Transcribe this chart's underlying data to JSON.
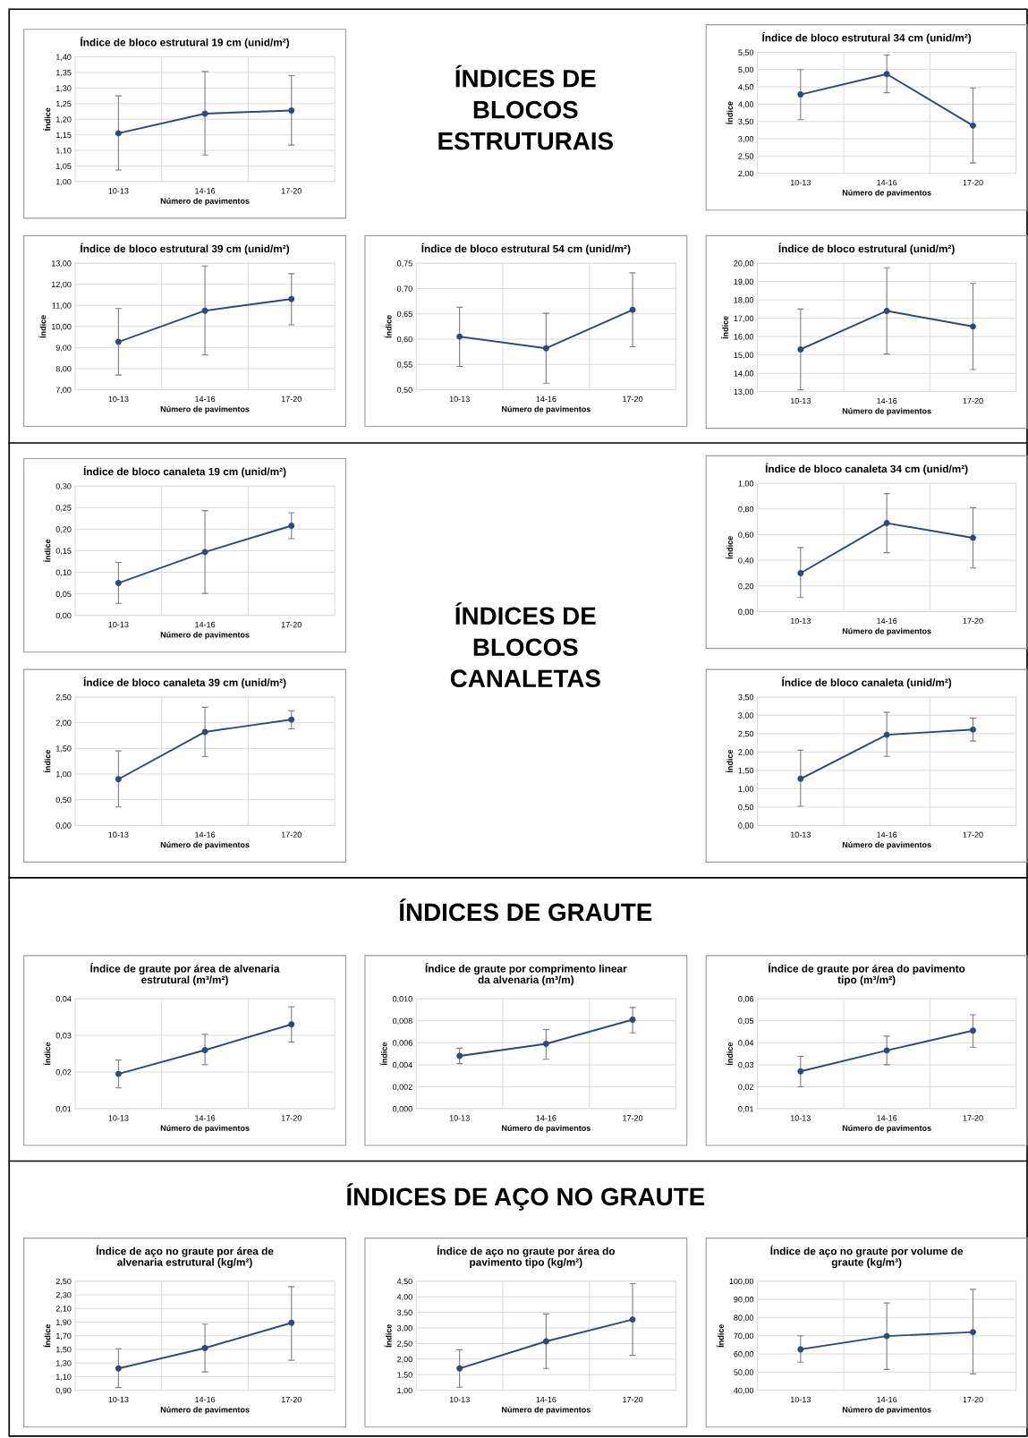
{
  "chart_data": [
    {
      "type": "line",
      "title": "Índice de bloco estrutural 19 cm (unid/m²)",
      "xlabel": "Número de pavimentos",
      "ylabel": "Índice",
      "categories": [
        "10-13",
        "14-16",
        "17-20"
      ],
      "marker": "circle",
      "grid": true,
      "series": [
        {
          "color": "#2e4a7d",
          "values": [
            1.155,
            1.218,
            1.228
          ],
          "errors": [
            [
              1.037,
              1.275
            ],
            [
              1.085,
              1.353
            ],
            [
              1.117,
              1.34
            ]
          ]
        }
      ],
      "ylim": [
        1.0,
        1.4
      ],
      "yticks": [
        {
          "value": 1.0,
          "label": "1,00"
        },
        {
          "value": 1.05,
          "label": "1,05"
        },
        {
          "value": 1.1,
          "label": "1,10"
        },
        {
          "value": 1.15,
          "label": "1,15"
        },
        {
          "value": 1.2,
          "label": "1,20"
        },
        {
          "value": 1.25,
          "label": "1,25"
        },
        {
          "value": 1.3,
          "label": "1,30"
        },
        {
          "value": 1.35,
          "label": "1,35"
        },
        {
          "value": 1.4,
          "label": "1,40"
        }
      ]
    },
    {
      "type": "other",
      "title": "ÍNDICES DE\nBLOCOS\nESTRUTURAIS"
    },
    {
      "type": "line",
      "title": "Índice de bloco estrutural 34 cm (unid/m²)",
      "xlabel": "Número de pavimentos",
      "ylabel": "Índice",
      "categories": [
        "10-13",
        "14-16",
        "17-20"
      ],
      "marker": "circle",
      "grid": true,
      "series": [
        {
          "color": "#2e4a7d",
          "values": [
            4.28,
            4.87,
            3.38
          ],
          "errors": [
            [
              3.55,
              5.0
            ],
            [
              4.33,
              5.42
            ],
            [
              2.3,
              4.47
            ]
          ]
        }
      ],
      "ylim": [
        2.0,
        5.5
      ],
      "yticks": [
        {
          "value": 2.0,
          "label": "2,00"
        },
        {
          "value": 2.5,
          "label": "2,50"
        },
        {
          "value": 3.0,
          "label": "3,00"
        },
        {
          "value": 3.5,
          "label": "3,50"
        },
        {
          "value": 4.0,
          "label": "4,00"
        },
        {
          "value": 4.5,
          "label": "4,50"
        },
        {
          "value": 5.0,
          "label": "5,00"
        },
        {
          "value": 5.5,
          "label": "5,50"
        }
      ]
    },
    {
      "type": "line",
      "title": "Índice de bloco estrutural 39 cm (unid/m²)",
      "xlabel": "Número de pavimentos",
      "ylabel": "Índice",
      "categories": [
        "10-13",
        "14-16",
        "17-20"
      ],
      "marker": "circle",
      "grid": true,
      "series": [
        {
          "color": "#2e4a7d",
          "values": [
            9.27,
            10.75,
            11.3
          ],
          "errors": [
            [
              7.7,
              10.85
            ],
            [
              8.65,
              12.87
            ],
            [
              10.08,
              12.5
            ]
          ]
        }
      ],
      "ylim": [
        7,
        13
      ],
      "yticks": [
        {
          "value": 7,
          "label": "7,00"
        },
        {
          "value": 8,
          "label": "8,00"
        },
        {
          "value": 9,
          "label": "9,00"
        },
        {
          "value": 10,
          "label": "10,00"
        },
        {
          "value": 11,
          "label": "11,00"
        },
        {
          "value": 12,
          "label": "12,00"
        },
        {
          "value": 13,
          "label": "13,00"
        }
      ]
    },
    {
      "type": "line",
      "title": "Índice de bloco estrutural 54 cm (unid/m²)",
      "xlabel": "Número de pavimentos",
      "ylabel": "Índice",
      "categories": [
        "10-13",
        "14-16",
        "17-20"
      ],
      "marker": "circle",
      "grid": true,
      "series": [
        {
          "color": "#2e4a7d",
          "values": [
            0.605,
            0.582,
            0.658
          ],
          "errors": [
            [
              0.546,
              0.663
            ],
            [
              0.513,
              0.651
            ],
            [
              0.585,
              0.731
            ]
          ]
        }
      ],
      "ylim": [
        0.5,
        0.75
      ],
      "yticks": [
        {
          "value": 0.5,
          "label": "0,50"
        },
        {
          "value": 0.55,
          "label": "0,55"
        },
        {
          "value": 0.6,
          "label": "0,60"
        },
        {
          "value": 0.65,
          "label": "0,65"
        },
        {
          "value": 0.7,
          "label": "0,70"
        },
        {
          "value": 0.75,
          "label": "0,75"
        }
      ]
    },
    {
      "type": "line",
      "title": "Índice de bloco estrutural (unid/m²)",
      "xlabel": "Número de pavimentos",
      "ylabel": "Índice",
      "categories": [
        "10-13",
        "14-16",
        "17-20"
      ],
      "marker": "circle",
      "grid": true,
      "series": [
        {
          "color": "#2e4a7d",
          "values": [
            15.3,
            17.4,
            16.55
          ],
          "errors": [
            [
              13.1,
              17.5
            ],
            [
              15.05,
              19.75
            ],
            [
              14.2,
              18.9
            ]
          ]
        }
      ],
      "ylim": [
        13,
        20
      ],
      "yticks": [
        {
          "value": 13,
          "label": "13,00"
        },
        {
          "value": 14,
          "label": "14,00"
        },
        {
          "value": 15,
          "label": "15,00"
        },
        {
          "value": 16,
          "label": "16,00"
        },
        {
          "value": 17,
          "label": "17,00"
        },
        {
          "value": 18,
          "label": "18,00"
        },
        {
          "value": 19,
          "label": "19,00"
        },
        {
          "value": 20,
          "label": "20,00"
        }
      ]
    },
    {
      "type": "line",
      "title": "Índice de bloco canaleta 19 cm (unid/m²)",
      "xlabel": "Número de pavimentos",
      "ylabel": "Índice",
      "categories": [
        "10-13",
        "14-16",
        "17-20"
      ],
      "marker": "circle",
      "grid": true,
      "series": [
        {
          "color": "#2e4a7d",
          "values": [
            0.075,
            0.147,
            0.208
          ],
          "errors": [
            [
              0.028,
              0.123
            ],
            [
              0.051,
              0.243
            ],
            [
              0.178,
              0.238
            ]
          ]
        }
      ],
      "ylim": [
        0,
        0.3
      ],
      "yticks": [
        {
          "value": 0,
          "label": "0,00"
        },
        {
          "value": 0.05,
          "label": "0,05"
        },
        {
          "value": 0.1,
          "label": "0,10"
        },
        {
          "value": 0.15,
          "label": "0,15"
        },
        {
          "value": 0.2,
          "label": "0,20"
        },
        {
          "value": 0.25,
          "label": "0,25"
        },
        {
          "value": 0.3,
          "label": "0,30"
        }
      ]
    },
    {
      "type": "other",
      "title": "ÍNDICES DE\nBLOCOS\nCANALETAS"
    },
    {
      "type": "line",
      "title": "Índice de bloco canaleta 34 cm (unid/m²)",
      "xlabel": "Número de pavimentos",
      "ylabel": "Índice",
      "categories": [
        "10-13",
        "14-16",
        "17-20"
      ],
      "marker": "circle",
      "grid": true,
      "series": [
        {
          "color": "#2e4a7d",
          "values": [
            0.3,
            0.69,
            0.575
          ],
          "errors": [
            [
              0.11,
              0.5
            ],
            [
              0.46,
              0.92
            ],
            [
              0.34,
              0.81
            ]
          ]
        }
      ],
      "ylim": [
        0,
        1
      ],
      "yticks": [
        {
          "value": 0,
          "label": "0,00"
        },
        {
          "value": 0.2,
          "label": "0,20"
        },
        {
          "value": 0.4,
          "label": "0,40"
        },
        {
          "value": 0.6,
          "label": "0,60"
        },
        {
          "value": 0.8,
          "label": "0,80"
        },
        {
          "value": 1,
          "label": "1,00"
        }
      ]
    },
    {
      "type": "line",
      "title": "Índice de bloco canaleta 39 cm (unid/m²)",
      "xlabel": "Número de pavimentos",
      "ylabel": "Índice",
      "categories": [
        "10-13",
        "14-16",
        "17-20"
      ],
      "marker": "circle",
      "grid": true,
      "series": [
        {
          "color": "#2e4a7d",
          "values": [
            0.9,
            1.82,
            2.06
          ],
          "errors": [
            [
              0.36,
              1.45
            ],
            [
              1.34,
              2.3
            ],
            [
              1.88,
              2.23
            ]
          ]
        }
      ],
      "ylim": [
        0,
        2.5
      ],
      "yticks": [
        {
          "value": 0,
          "label": "0,00"
        },
        {
          "value": 0.5,
          "label": "0,50"
        },
        {
          "value": 1,
          "label": "1,00"
        },
        {
          "value": 1.5,
          "label": "1,50"
        },
        {
          "value": 2,
          "label": "2,00"
        },
        {
          "value": 2.5,
          "label": "2,50"
        }
      ]
    },
    {
      "type": "line",
      "title": "Índice de bloco canaleta (unid/m²)",
      "xlabel": "Número de pavimentos",
      "ylabel": "Índice",
      "categories": [
        "10-13",
        "14-16",
        "17-20"
      ],
      "marker": "circle",
      "grid": true,
      "series": [
        {
          "color": "#2e4a7d",
          "values": [
            1.27,
            2.47,
            2.61
          ],
          "errors": [
            [
              0.52,
              2.05
            ],
            [
              1.88,
              3.08
            ],
            [
              2.3,
              2.92
            ]
          ]
        }
      ],
      "ylim": [
        0,
        3.5
      ],
      "yticks": [
        {
          "value": 0,
          "label": "0,00"
        },
        {
          "value": 0.5,
          "label": "0,50"
        },
        {
          "value": 1,
          "label": "1,00"
        },
        {
          "value": 1.5,
          "label": "1,50"
        },
        {
          "value": 2,
          "label": "2,00"
        },
        {
          "value": 2.5,
          "label": "2,50"
        },
        {
          "value": 3,
          "label": "3,00"
        },
        {
          "value": 3.5,
          "label": "3,50"
        }
      ]
    },
    {
      "type": "other",
      "title": "ÍNDICES DE GRAUTE"
    },
    {
      "type": "line",
      "title": "Índice de graute por área de alvenaria\nestrutural (m³/m²)",
      "xlabel": "Número de pavimentos",
      "ylabel": "Índice",
      "categories": [
        "10-13",
        "14-16",
        "17-20"
      ],
      "marker": "circle",
      "grid": true,
      "series": [
        {
          "color": "#2e4a7d",
          "values": [
            0.0195,
            0.026,
            0.033
          ],
          "errors": [
            [
              0.0157,
              0.0233
            ],
            [
              0.022,
              0.0303
            ],
            [
              0.0282,
              0.0378
            ]
          ]
        }
      ],
      "ylim": [
        0.01,
        0.04
      ],
      "yticks": [
        {
          "value": 0.01,
          "label": "0,01"
        },
        {
          "value": 0.02,
          "label": "0,02"
        },
        {
          "value": 0.03,
          "label": "0,03"
        },
        {
          "value": 0.04,
          "label": "0,04"
        }
      ]
    },
    {
      "type": "line",
      "title": "Índice de graute por comprimento linear\nda alvenaria (m³/m)",
      "xlabel": "Número de pavimentos",
      "ylabel": "Índice",
      "categories": [
        "10-13",
        "14-16",
        "17-20"
      ],
      "marker": "circle",
      "grid": true,
      "series": [
        {
          "color": "#2e4a7d",
          "values": [
            0.0048,
            0.0059,
            0.0081
          ],
          "errors": [
            [
              0.0041,
              0.0055
            ],
            [
              0.0045,
              0.0072
            ],
            [
              0.0069,
              0.0092
            ]
          ]
        }
      ],
      "ylim": [
        0,
        0.01
      ],
      "yticks": [
        {
          "value": 0,
          "label": "0,000"
        },
        {
          "value": 0.002,
          "label": "0,002"
        },
        {
          "value": 0.004,
          "label": "0,004"
        },
        {
          "value": 0.006,
          "label": "0,006"
        },
        {
          "value": 0.008,
          "label": "0,008"
        },
        {
          "value": 0.01,
          "label": "0,010"
        }
      ]
    },
    {
      "type": "line",
      "title": "Índice de graute por área do pavimento\ntipo (m³/m²)",
      "xlabel": "Número de pavimentos",
      "ylabel": "Índice",
      "categories": [
        "10-13",
        "14-16",
        "17-20"
      ],
      "marker": "circle",
      "grid": true,
      "series": [
        {
          "color": "#2e4a7d",
          "values": [
            0.027,
            0.0365,
            0.0455
          ],
          "errors": [
            [
              0.02,
              0.0338
            ],
            [
              0.03,
              0.043
            ],
            [
              0.038,
              0.0527
            ]
          ]
        }
      ],
      "ylim": [
        0.01,
        0.06
      ],
      "yticks": [
        {
          "value": 0.01,
          "label": "0,01"
        },
        {
          "value": 0.02,
          "label": "0,02"
        },
        {
          "value": 0.03,
          "label": "0,03"
        },
        {
          "value": 0.04,
          "label": "0,04"
        },
        {
          "value": 0.05,
          "label": "0,05"
        },
        {
          "value": 0.06,
          "label": "0,06"
        }
      ]
    },
    {
      "type": "other",
      "title": "ÍNDICES DE AÇO NO GRAUTE"
    },
    {
      "type": "line",
      "title": "Índice de aço no graute por área de\nalvenaria estrutural (kg/m²)",
      "xlabel": "Número de pavimentos",
      "ylabel": "Índice",
      "categories": [
        "10-13",
        "14-16",
        "17-20"
      ],
      "marker": "circle",
      "grid": true,
      "series": [
        {
          "color": "#2e4a7d",
          "values": [
            1.22,
            1.52,
            1.89
          ],
          "errors": [
            [
              0.94,
              1.51
            ],
            [
              1.17,
              1.87
            ],
            [
              1.34,
              2.42
            ]
          ]
        }
      ],
      "ylim": [
        0.9,
        2.5
      ],
      "yticks": [
        {
          "value": 0.9,
          "label": "0,90"
        },
        {
          "value": 1.1,
          "label": "1,10"
        },
        {
          "value": 1.3,
          "label": "1,30"
        },
        {
          "value": 1.5,
          "label": "1,50"
        },
        {
          "value": 1.7,
          "label": "1,70"
        },
        {
          "value": 1.9,
          "label": "1,90"
        },
        {
          "value": 2.1,
          "label": "2,10"
        },
        {
          "value": 2.3,
          "label": "2,30"
        },
        {
          "value": 2.5,
          "label": "2,50"
        }
      ]
    },
    {
      "type": "line",
      "title": "Índice de aço no graute por área do\npavimento tipo (kg/m²)",
      "xlabel": "Número de pavimentos",
      "ylabel": "Índice",
      "categories": [
        "10-13",
        "14-16",
        "17-20"
      ],
      "marker": "circle",
      "grid": true,
      "series": [
        {
          "color": "#2e4a7d",
          "values": [
            1.7,
            2.57,
            3.27
          ],
          "errors": [
            [
              1.1,
              2.3
            ],
            [
              1.7,
              3.45
            ],
            [
              2.12,
              4.42
            ]
          ]
        }
      ],
      "ylim": [
        1,
        4.5
      ],
      "yticks": [
        {
          "value": 1,
          "label": "1,00"
        },
        {
          "value": 1.5,
          "label": "1,50"
        },
        {
          "value": 2,
          "label": "2,00"
        },
        {
          "value": 2.5,
          "label": "2,50"
        },
        {
          "value": 3,
          "label": "3,00"
        },
        {
          "value": 3.5,
          "label": "3,50"
        },
        {
          "value": 4,
          "label": "4,00"
        },
        {
          "value": 4.5,
          "label": "4,50"
        }
      ]
    },
    {
      "type": "line",
      "title": "Índice de aço no graute por volume de\ngraute (kg/m³)",
      "xlabel": "Número de pavimentos",
      "ylabel": "Índice",
      "categories": [
        "10-13",
        "14-16",
        "17-20"
      ],
      "marker": "circle",
      "grid": true,
      "series": [
        {
          "color": "#2e4a7d",
          "values": [
            62.5,
            69.8,
            72.0
          ],
          "errors": [
            [
              55.5,
              70
            ],
            [
              51.5,
              88
            ],
            [
              49,
              95.5
            ]
          ]
        }
      ],
      "ylim": [
        40,
        100
      ],
      "yticks": [
        {
          "value": 40,
          "label": "40,00"
        },
        {
          "value": 50,
          "label": "50,00"
        },
        {
          "value": 60,
          "label": "60,00"
        },
        {
          "value": 70,
          "label": "70,00"
        },
        {
          "value": 80,
          "label": "80,00"
        },
        {
          "value": 90,
          "label": "90,00"
        },
        {
          "value": 100,
          "label": "100,00"
        }
      ]
    }
  ]
}
